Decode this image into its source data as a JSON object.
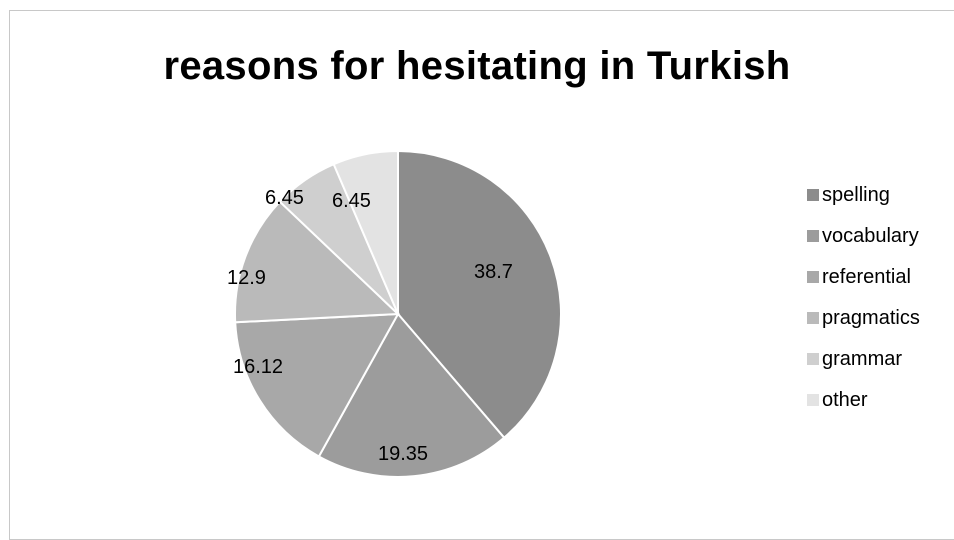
{
  "chart_data": {
    "type": "pie",
    "title": "reasons for hesitating in Turkish",
    "categories": [
      "spelling",
      "vocabulary",
      "referential",
      "pragmatics",
      "grammar",
      "other"
    ],
    "values": [
      38.7,
      19.35,
      16.12,
      12.9,
      6.45,
      6.45
    ],
    "data_labels": [
      "38.7",
      "19.35",
      "16.12",
      "12.9",
      "6.45",
      "6.45"
    ],
    "colors": [
      "#8c8c8c",
      "#9c9c9c",
      "#a8a8a8",
      "#bababa",
      "#cfcfcf",
      "#e3e3e3"
    ],
    "legend_position": "right",
    "start_angle": "12 o'clock",
    "direction": "clockwise"
  }
}
